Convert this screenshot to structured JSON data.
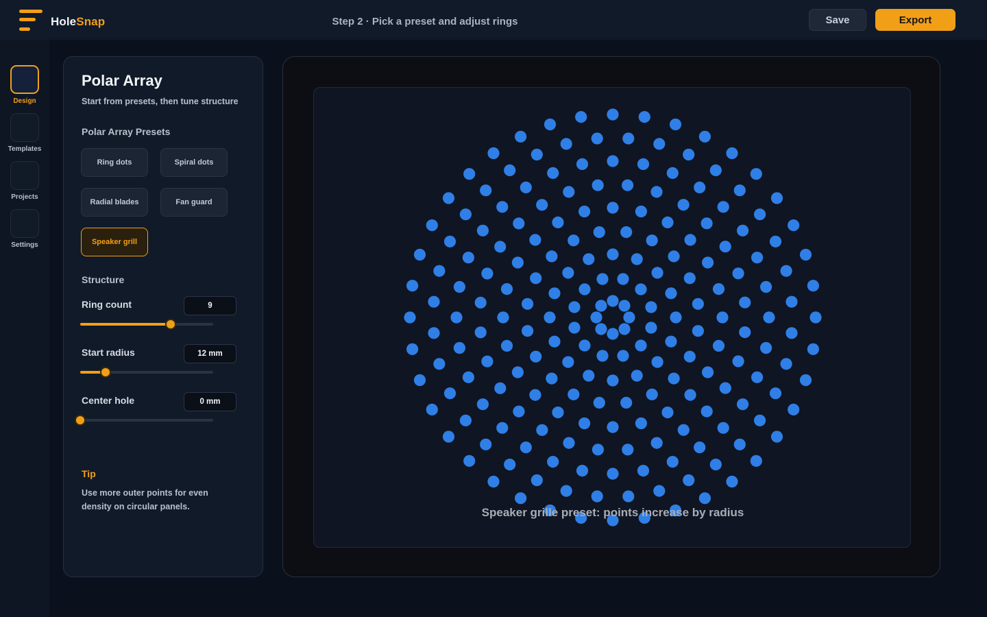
{
  "app": {
    "brand_part1": "Hole",
    "brand_part2": "Snap",
    "step_title": "Step 2 · Pick a preset and adjust rings",
    "save_label": "Save",
    "export_label": "Export",
    "accent_color": "#f29f18"
  },
  "rail": {
    "items": [
      {
        "label": "Design",
        "active": true
      },
      {
        "label": "Templates",
        "active": false
      },
      {
        "label": "Projects",
        "active": false
      },
      {
        "label": "Settings",
        "active": false
      }
    ]
  },
  "panel": {
    "title": "Polar Array",
    "subtitle": "Start from presets, then tune structure",
    "presets_heading": "Polar Array Presets",
    "presets": [
      "Ring dots",
      "Spiral dots",
      "Radial blades",
      "Fan guard",
      "Speaker grill"
    ],
    "active_preset": "Speaker grill",
    "structure_heading": "Structure",
    "controls": {
      "ring_count": {
        "label": "Ring count",
        "value": "9",
        "fraction": 0.68
      },
      "start_radius": {
        "label": "Start radius",
        "value": "12 mm",
        "fraction": 0.19
      },
      "center_hole": {
        "label": "Center hole",
        "value": "0 mm",
        "fraction": 0.0
      }
    },
    "tip_title": "Tip",
    "tip_text": "Use more outer points for even density on circular panels."
  },
  "canvas": {
    "caption": "Speaker grille preset: points increase by radius",
    "hole_color": "#2f7fe6",
    "rings": [
      {
        "count": 8,
        "offset_deg": 0
      },
      {
        "count": 12,
        "offset_deg": 15
      },
      {
        "count": 16,
        "offset_deg": 0
      },
      {
        "count": 20,
        "offset_deg": 9
      },
      {
        "count": 24,
        "offset_deg": 0
      },
      {
        "count": 28,
        "offset_deg": 6.4
      },
      {
        "count": 32,
        "offset_deg": 0
      },
      {
        "count": 36,
        "offset_deg": 5
      },
      {
        "count": 40,
        "offset_deg": 0
      }
    ]
  }
}
